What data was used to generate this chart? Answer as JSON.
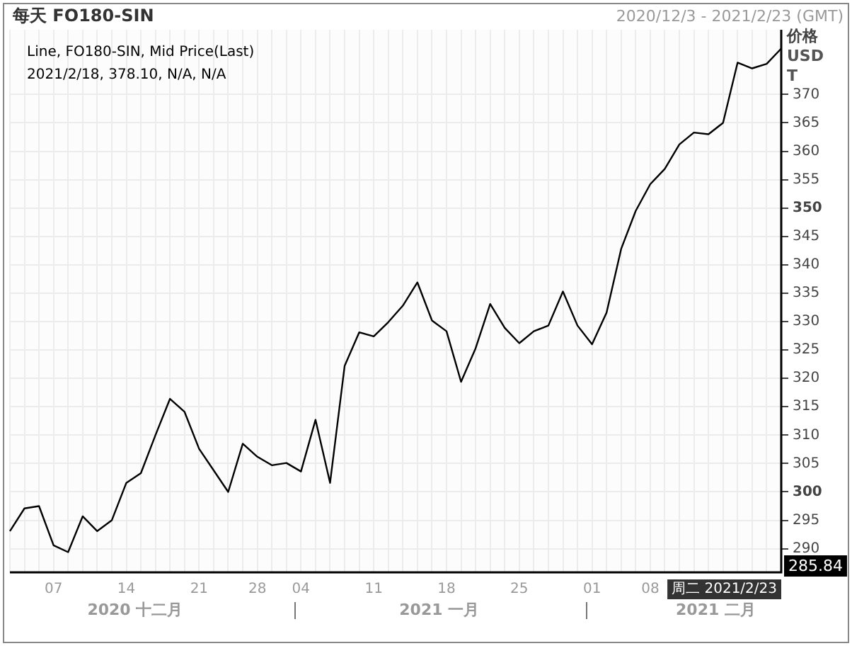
{
  "chart_data": {
    "type": "line",
    "title": "每天 FO180-SIN",
    "subtitle": "2020/12/3 - 2021/2/23 (GMT)",
    "ylabel": "价格 USD T",
    "categories": [
      null,
      null,
      null,
      "07",
      null,
      null,
      null,
      null,
      "14",
      null,
      null,
      null,
      null,
      "21",
      null,
      null,
      null,
      "28",
      null,
      null,
      "04",
      null,
      null,
      null,
      null,
      "11",
      null,
      null,
      null,
      null,
      "18",
      null,
      null,
      null,
      null,
      "25",
      null,
      null,
      null,
      null,
      "01",
      null,
      null,
      null,
      "08",
      null,
      null,
      null,
      null,
      null,
      null,
      null,
      null,
      null
    ],
    "series": [
      {
        "color": "#000000",
        "values": [
          293.1,
          297.1,
          297.5,
          290.6,
          289.4,
          295.7,
          293.1,
          295.0,
          301.6,
          303.3,
          310.0,
          316.4,
          314.1,
          307.6,
          303.8,
          300.0,
          308.5,
          306.2,
          304.7,
          305.1,
          303.6,
          312.7,
          301.6,
          322.2,
          328.1,
          327.4,
          329.9,
          332.8,
          336.9,
          330.2,
          328.3,
          319.4,
          325.3,
          333.1,
          328.9,
          326.2,
          328.3,
          329.3,
          335.3,
          329.3,
          326.0,
          331.6,
          342.8,
          349.5,
          354.2,
          356.9,
          361.2,
          363.3,
          363.0,
          365.0,
          375.6,
          374.6,
          375.4,
          378.1
        ]
      }
    ],
    "ylim": [
      285.84,
      381.4
    ],
    "yticks": [
      290,
      295,
      300,
      305,
      310,
      315,
      320,
      325,
      330,
      335,
      340,
      345,
      350,
      355,
      360,
      365,
      370
    ],
    "grid": true,
    "legend": false,
    "marker": "none",
    "line_style": "solid",
    "annotations": [
      "Line, FO180-SIN, Mid Price(Last)",
      "2021/2/18, 378.10, N/A, N/A",
      "2020 十二月",
      "2021 一月",
      "2021 二月",
      "285.84",
      "周二 2021/2/23"
    ]
  }
}
